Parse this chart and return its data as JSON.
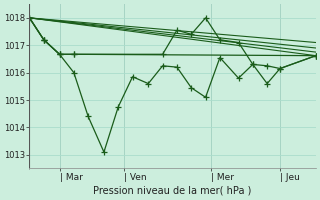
{
  "background_color": "#cceedd",
  "grid_color": "#aaddcc",
  "line_color": "#1a5c1a",
  "figsize": [
    3.2,
    2.0
  ],
  "dpi": 100,
  "ylabel": "Pression niveau de la mer( hPa )",
  "ylim": [
    1012.5,
    1018.5
  ],
  "yticks": [
    1013,
    1014,
    1015,
    1016,
    1017,
    1018
  ],
  "xlim": [
    0,
    10.0
  ],
  "day_labels": [
    "| Mar",
    "| Ven",
    "| Mer",
    "| Jeu"
  ],
  "day_positions": [
    1.05,
    3.3,
    6.35,
    8.75
  ],
  "vline_positions": [
    1.05,
    3.3,
    6.35,
    8.75
  ],
  "series": [
    {
      "x": [
        0.0,
        10.0
      ],
      "y": [
        1018.0,
        1016.62
      ],
      "has_markers": false
    },
    {
      "x": [
        0.0,
        10.0
      ],
      "y": [
        1018.0,
        1016.75
      ],
      "has_markers": false
    },
    {
      "x": [
        0.0,
        10.0
      ],
      "y": [
        1018.0,
        1016.9
      ],
      "has_markers": false
    },
    {
      "x": [
        0.0,
        10.0
      ],
      "y": [
        1018.0,
        1017.1
      ],
      "has_markers": false
    },
    {
      "x": [
        0.0,
        0.5,
        1.05,
        1.55,
        10.0
      ],
      "y": [
        1018.0,
        1017.2,
        1016.67,
        1016.67,
        1016.62
      ],
      "has_markers": true
    },
    {
      "x": [
        0.0,
        0.5,
        1.05,
        1.55,
        2.05,
        2.6,
        3.1,
        3.6,
        4.15,
        4.65,
        5.15,
        5.65,
        6.15,
        6.65,
        7.3,
        7.8,
        8.3,
        8.75,
        10.0
      ],
      "y": [
        1018.0,
        1017.2,
        1016.67,
        1016.0,
        1014.4,
        1013.1,
        1014.75,
        1015.85,
        1015.6,
        1016.25,
        1016.2,
        1015.45,
        1015.1,
        1016.55,
        1015.8,
        1016.3,
        1015.6,
        1016.15,
        1016.62
      ],
      "has_markers": true
    },
    {
      "x": [
        0.0,
        0.5,
        1.05,
        1.55,
        4.65,
        5.15,
        5.65,
        6.15,
        6.65,
        7.3,
        7.8,
        8.3,
        8.75,
        10.0
      ],
      "y": [
        1018.0,
        1017.2,
        1016.67,
        1016.67,
        1016.67,
        1017.55,
        1017.4,
        1018.0,
        1017.2,
        1017.1,
        1016.3,
        1016.25,
        1016.15,
        1016.62
      ],
      "has_markers": true
    }
  ]
}
